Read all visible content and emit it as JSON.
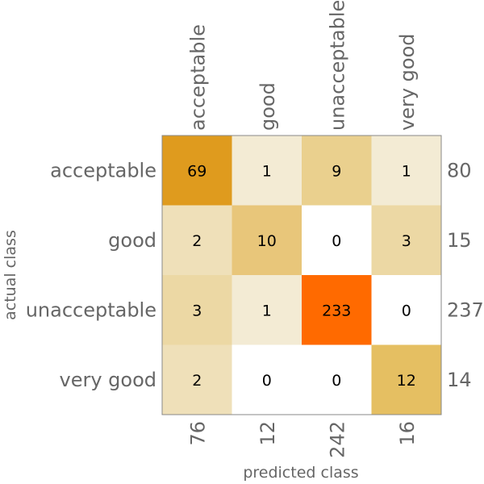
{
  "chart_data": {
    "type": "heatmap",
    "title": "",
    "xlabel": "predicted class",
    "ylabel": "actual class",
    "x_categories": [
      "acceptable",
      "good",
      "unacceptable",
      "very good"
    ],
    "y_categories": [
      "acceptable",
      "good",
      "unacceptable",
      "very good"
    ],
    "values": [
      [
        69,
        1,
        9,
        1
      ],
      [
        2,
        10,
        0,
        3
      ],
      [
        3,
        1,
        233,
        0
      ],
      [
        2,
        0,
        0,
        12
      ]
    ],
    "row_totals": [
      "80",
      "15",
      "237",
      "14"
    ],
    "column_totals": [
      "76",
      "12",
      "242",
      "16"
    ],
    "colors": {
      "cells": [
        [
          "#df9b1e",
          "#f3ebd4",
          "#ead08e",
          "#f3ebd4"
        ],
        [
          "#efe0b9",
          "#e8c67a",
          "#ffffff",
          "#ecd8a4"
        ],
        [
          "#ecd8a4",
          "#f3ebd4",
          "#ff6a00",
          "#ffffff"
        ],
        [
          "#efe0b9",
          "#ffffff",
          "#ffffff",
          "#e5bf62"
        ]
      ],
      "label_text": "#666666",
      "cell_text": "#000000",
      "frame": "#888888"
    }
  }
}
